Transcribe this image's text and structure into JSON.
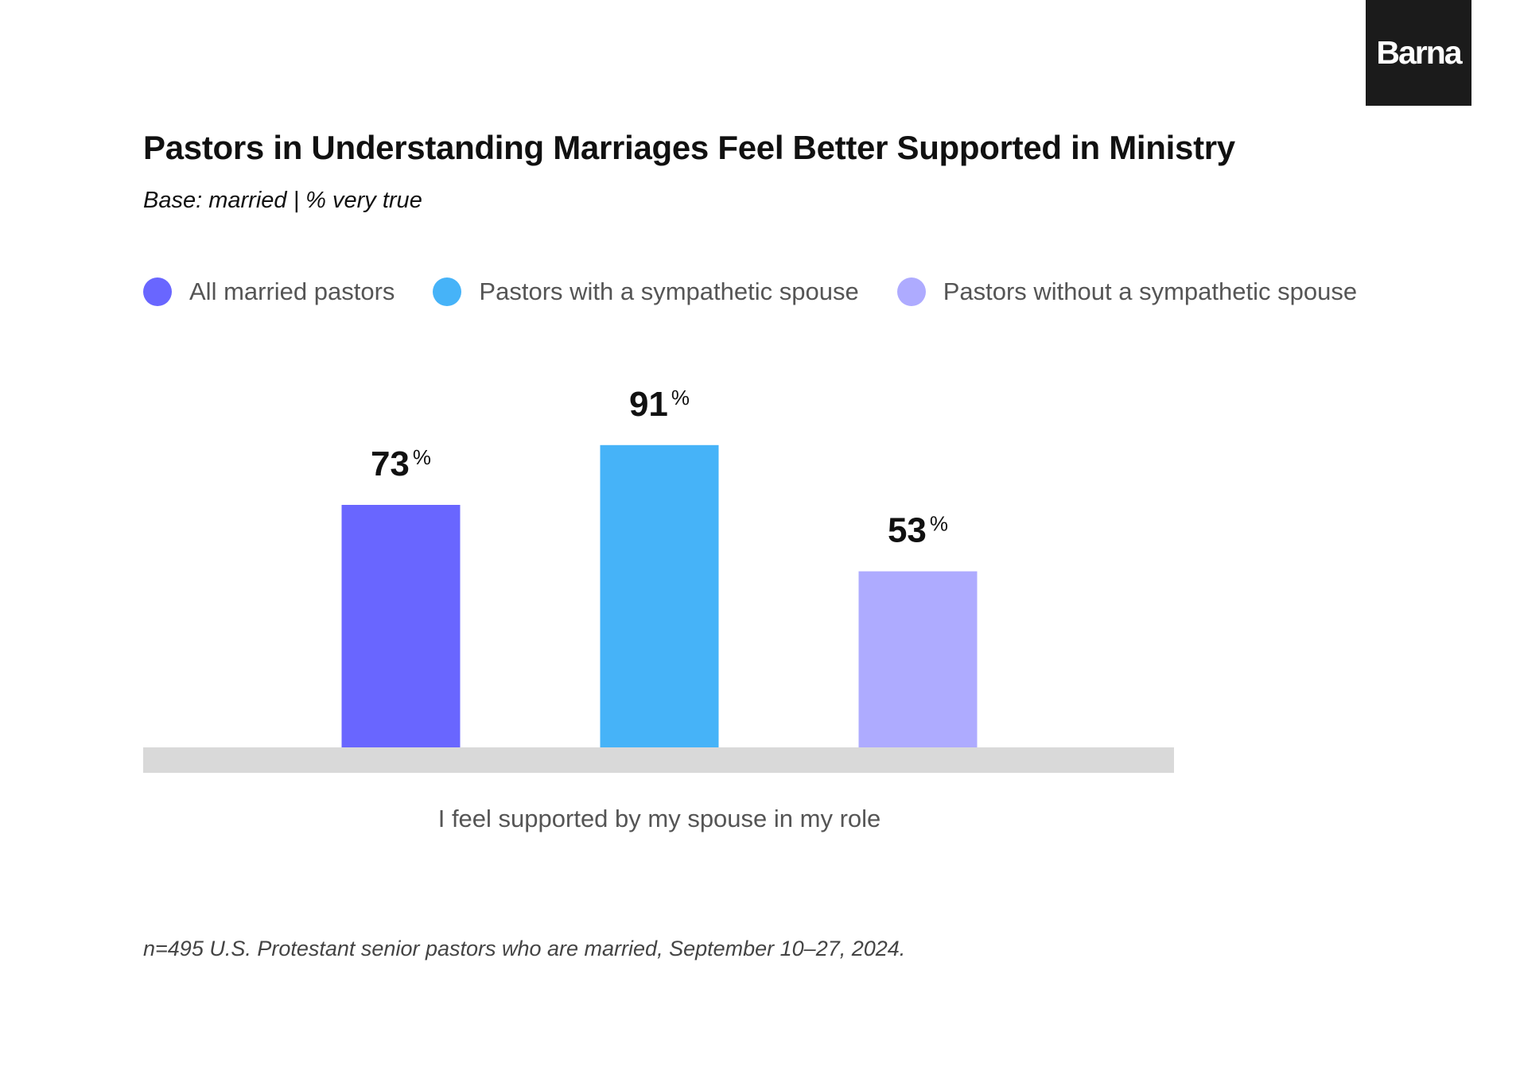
{
  "logo": {
    "text": "Barna"
  },
  "header": {
    "title": "Pastors in Understanding Marriages Feel Better Supported in Ministry",
    "subtitle": "Base: married | % very true"
  },
  "footnote": "n=495 U.S. Protestant senior pastors who are married, September 10–27, 2024.",
  "chart_data": {
    "type": "bar",
    "title": "Pastors in Understanding Marriages Feel Better Supported in Ministry",
    "subtitle": "Base: married | % very true",
    "categories": [
      "I feel supported by my spouse in my role"
    ],
    "series": [
      {
        "name": "All married pastors",
        "values": [
          73
        ],
        "color": "#6966ff"
      },
      {
        "name": "Pastors with a sympathetic spouse",
        "values": [
          91
        ],
        "color": "#46b3f8"
      },
      {
        "name": "Pastors without a sympathetic spouse",
        "values": [
          53
        ],
        "color": "#aeabff"
      }
    ],
    "value_suffix": "%",
    "ylim": [
      0,
      100
    ],
    "grid": false,
    "legend_position": "top-left",
    "baseline_color": "#d9d9d9"
  }
}
